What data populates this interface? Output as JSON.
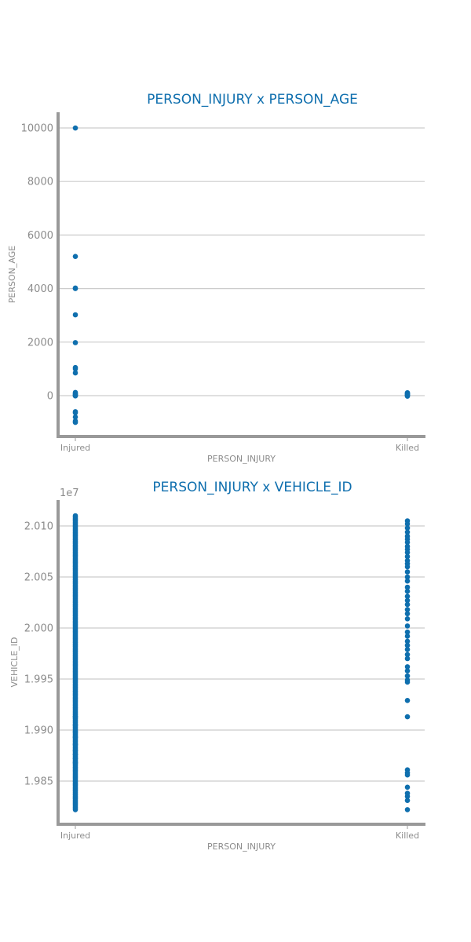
{
  "colors": {
    "accent": "#1f77b4",
    "point": "#0f6fae",
    "title": "#0f6fae",
    "axis": "#999999",
    "grid": "#cccccc",
    "text": "#8c8c8c"
  },
  "chart_data": [
    {
      "type": "scatter",
      "title": "PERSON_INJURY x PERSON_AGE",
      "xlabel": "PERSON_INJURY",
      "ylabel": "PERSON_AGE",
      "categories": [
        "Injured",
        "Killed"
      ],
      "grid": true,
      "ylim": [
        -1500,
        10600
      ],
      "yticks": [
        0,
        2000,
        4000,
        6000,
        8000,
        10000
      ],
      "ytick_labels": [
        "0",
        "2000",
        "4000",
        "6000",
        "8000",
        "10000"
      ],
      "points": {
        "Injured": [
          9999,
          5200,
          4020,
          4000,
          3020,
          1980,
          1050,
          1000,
          850,
          120,
          80,
          40,
          20,
          0,
          -10,
          -600,
          -640,
          -800,
          -950,
          -1000
        ],
        "Killed": [
          110,
          90,
          70,
          50,
          30,
          10,
          0,
          -20
        ]
      }
    },
    {
      "type": "scatter",
      "title": "PERSON_INJURY x VEHICLE_ID",
      "xlabel": "PERSON_INJURY",
      "ylabel": "VEHICLE_ID",
      "offset_text": "1e7",
      "categories": [
        "Injured",
        "Killed"
      ],
      "grid": true,
      "ylim": [
        1.9808,
        2.0124
      ],
      "yticks": [
        1.985,
        1.99,
        1.995,
        2.0,
        2.005,
        2.01
      ],
      "ytick_labels": [
        "1.985",
        "1.990",
        "1.995",
        "2.000",
        "2.005",
        "2.010"
      ],
      "points": {
        "Injured": {
          "dense_range": [
            1.9822,
            2.011
          ],
          "extra": [
            1.9913,
            1.9905,
            1.9898,
            1.9893,
            1.9886,
            1.988,
            1.9876,
            1.9872,
            1.9868
          ]
        },
        "Killed": [
          2.0105,
          2.0102,
          2.0098,
          2.0094,
          2.009,
          2.0087,
          2.0084,
          2.008,
          2.0077,
          2.0074,
          2.007,
          2.0066,
          2.0063,
          2.006,
          2.0055,
          2.005,
          2.0046,
          2.004,
          2.0036,
          2.0031,
          2.0027,
          2.0023,
          2.0018,
          2.0014,
          2.0009,
          2.0002,
          1.9996,
          1.9992,
          1.9987,
          1.9983,
          1.9979,
          1.9974,
          1.997,
          1.9962,
          1.9958,
          1.9953,
          1.9949,
          1.9947,
          1.9929,
          1.9913,
          1.9861,
          1.9858,
          1.9856,
          1.9844,
          1.9838,
          1.9835,
          1.9831,
          1.9822
        ]
      }
    }
  ]
}
